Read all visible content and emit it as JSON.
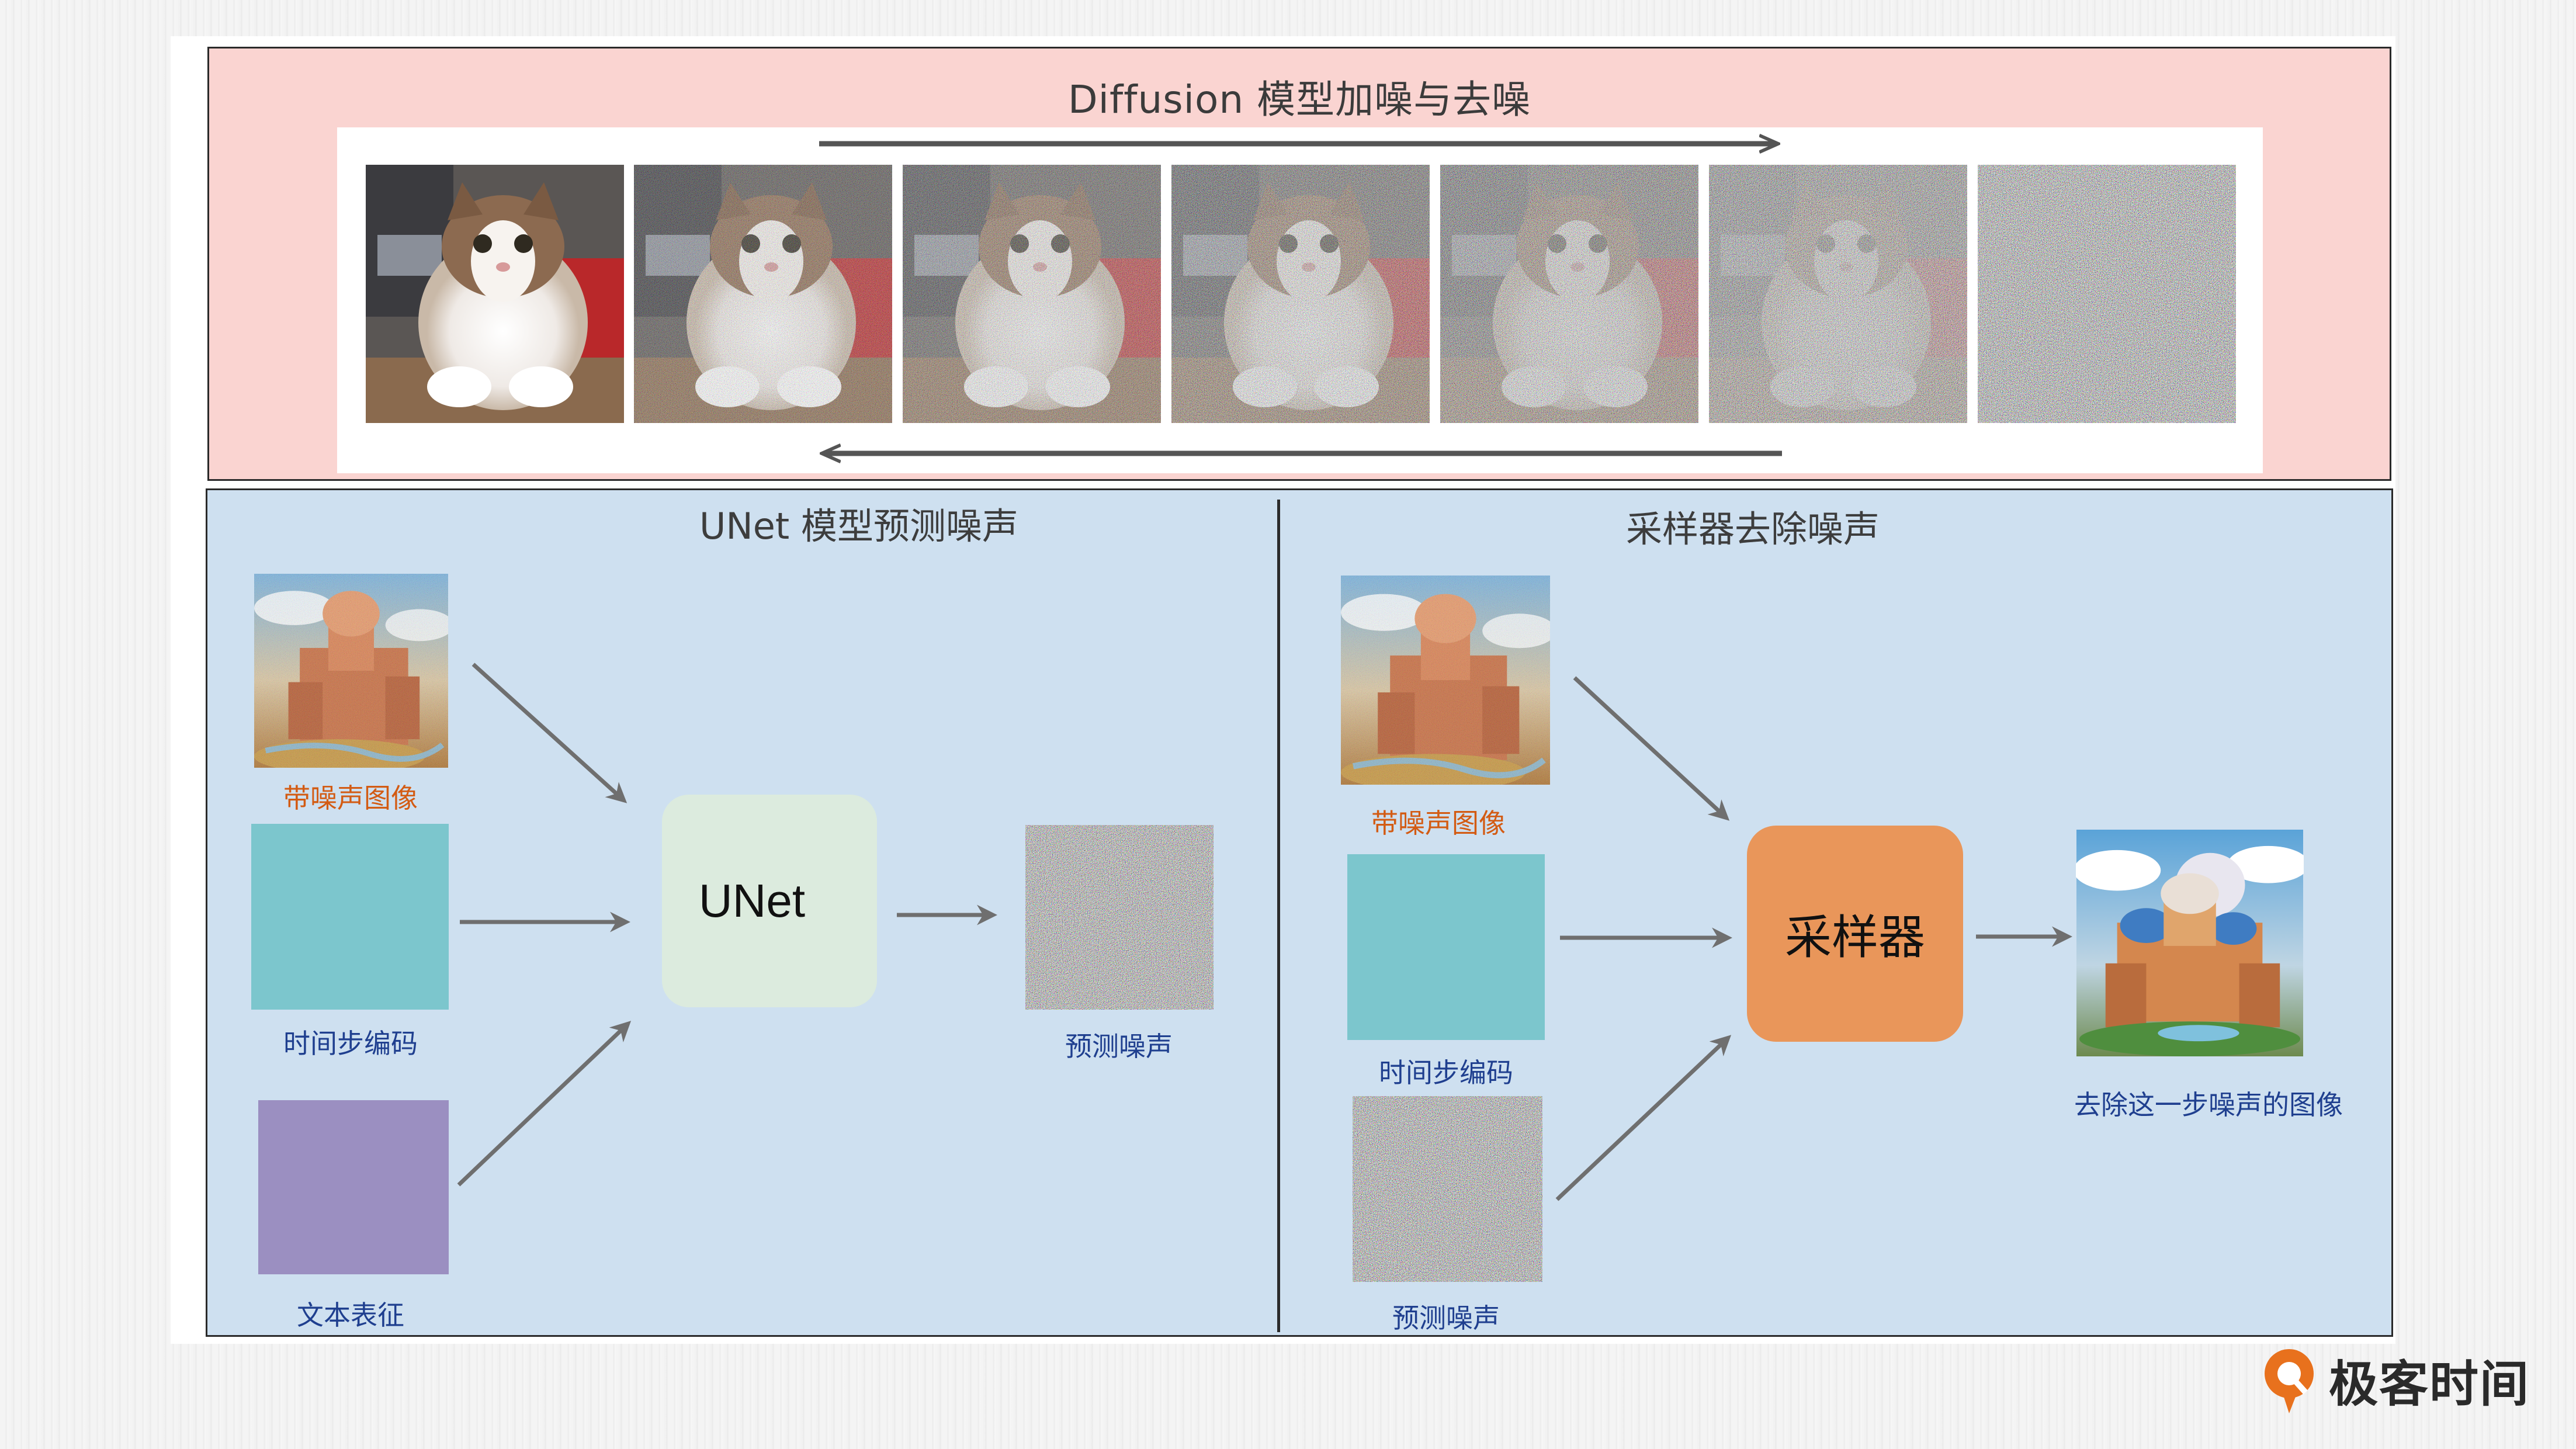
{
  "top": {
    "title": "Diffusion 模型加噪与去噪",
    "frames_count_desc": "cat-noise-sequence"
  },
  "left": {
    "title": "UNet 模型预测噪声",
    "inputs": {
      "noisy_image_label": "带噪声图像",
      "timestep_label": "时间步编码",
      "text_label": "文本表征"
    },
    "model_label": "UNet",
    "output_label": "预测噪声"
  },
  "right": {
    "title": "采样器去除噪声",
    "inputs": {
      "noisy_image_label": "带噪声图像",
      "timestep_label": "时间步编码",
      "noise_label": "预测噪声"
    },
    "model_label": "采样器",
    "output_label": "去除这一步噪声的图像"
  },
  "logo": {
    "text": "极客时间"
  },
  "colors": {
    "top_panel": "#fad4d1",
    "bottom_panel": "#cee0f0",
    "timestep_square": "#7cc6cd",
    "text_square": "#9b8fc1",
    "unet_box": "#dcebde",
    "sampler_box": "#e9965a",
    "arrow": "#6f6f6f",
    "caption_orange": "#d35b13",
    "caption_blue": "#1f3f8f",
    "logo_orange": "#e8711d"
  }
}
